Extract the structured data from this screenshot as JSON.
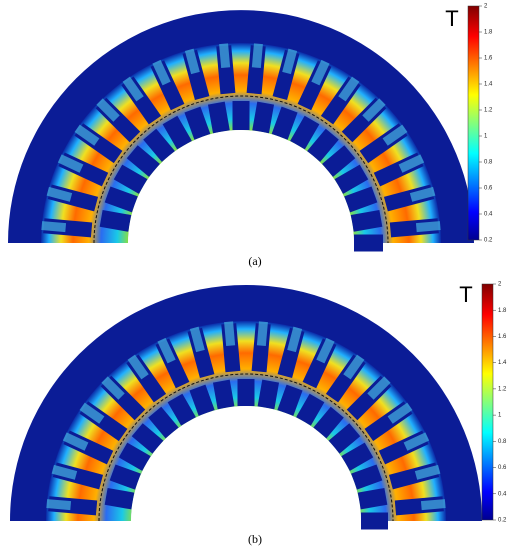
{
  "figures": [
    {
      "caption": "(a)",
      "colorbar": {
        "label": "T",
        "lim": [
          0.2,
          2
        ],
        "ticks": [
          0.2,
          0.4,
          0.6,
          0.8,
          1,
          1.2,
          1.4,
          1.6,
          1.8,
          2
        ]
      }
    },
    {
      "caption": "(b)",
      "colorbar": {
        "label": "T",
        "lim": [
          0.2,
          2
        ],
        "ticks": [
          0.2,
          0.4,
          0.6,
          0.8,
          1,
          1.2,
          1.4,
          1.6,
          1.8,
          2
        ]
      }
    }
  ]
}
